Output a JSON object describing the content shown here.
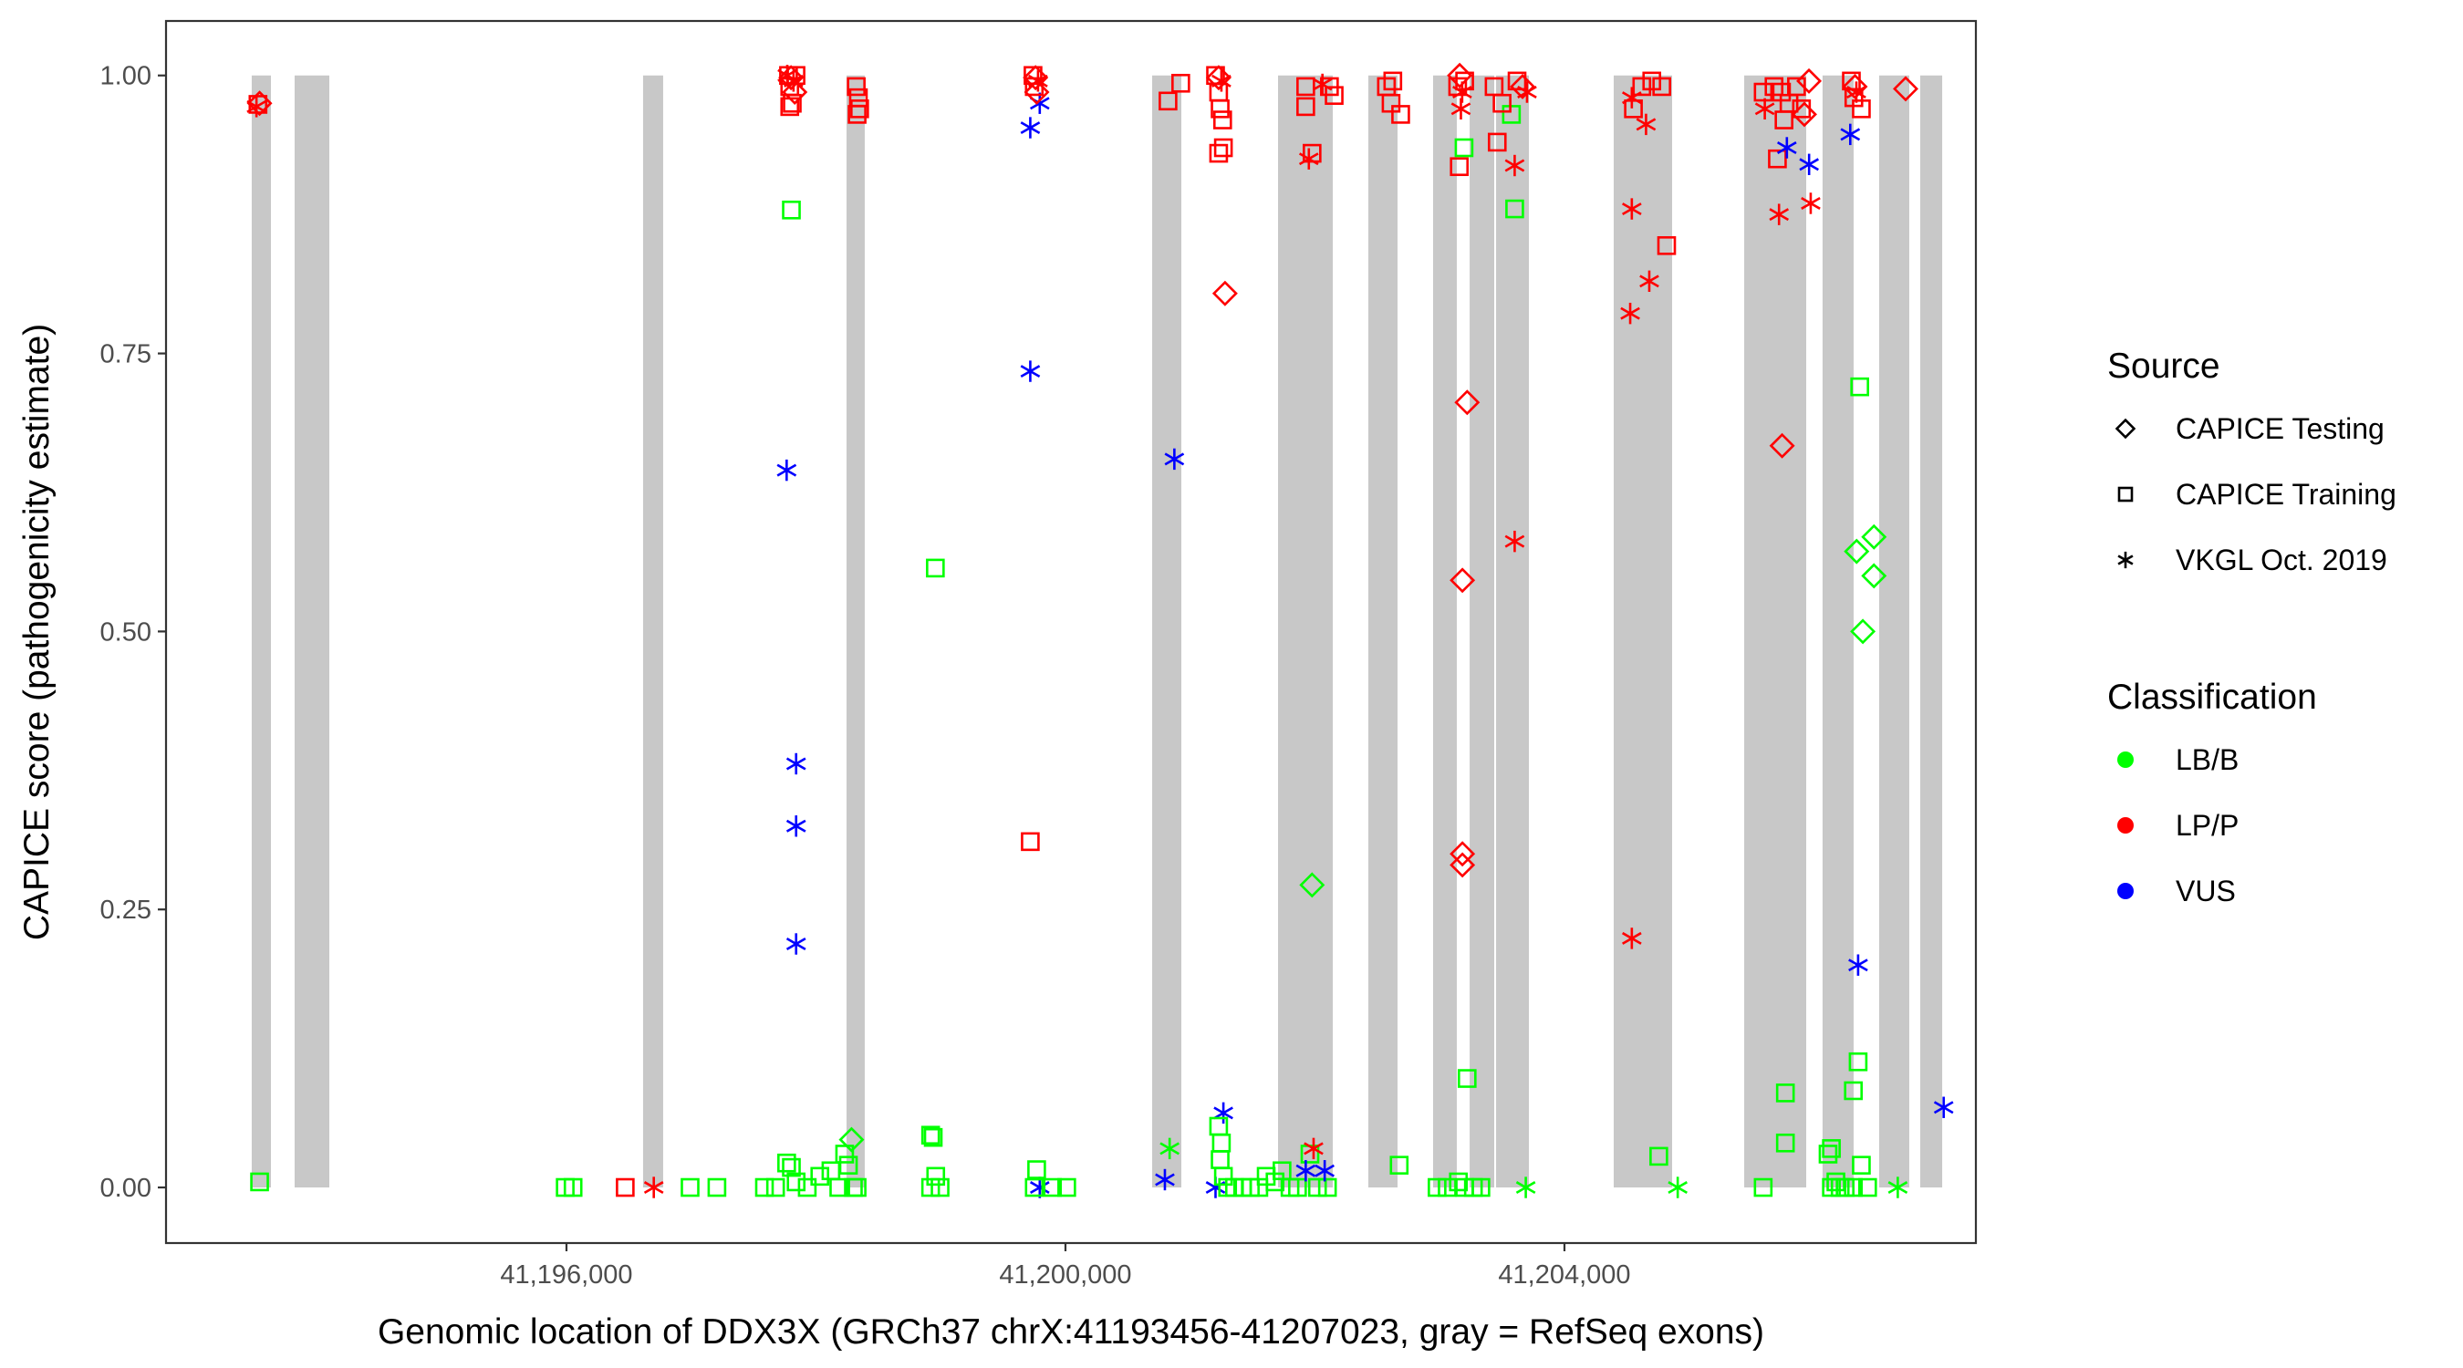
{
  "chart_data": {
    "type": "scatter",
    "title": "",
    "xlabel": "Genomic location of DDX3X (GRCh37 chrX:41193456-41207023, gray = RefSeq exons)",
    "ylabel": "CAPICE score (pathogenicity estimate)",
    "xlim": [
      41192790,
      41207298
    ],
    "ylim": [
      -0.05,
      1.049
    ],
    "grid": false,
    "x_ticks": [
      {
        "value": 41196000,
        "label": "41,196,000"
      },
      {
        "value": 41200000,
        "label": "41,200,000"
      },
      {
        "value": 41204000,
        "label": "41,204,000"
      }
    ],
    "y_ticks": [
      {
        "value": 0.0,
        "label": "0.00"
      },
      {
        "value": 0.25,
        "label": "0.25"
      },
      {
        "value": 0.5,
        "label": "0.50"
      },
      {
        "value": 0.75,
        "label": "0.75"
      },
      {
        "value": 1.0,
        "label": "1.00"
      }
    ],
    "exon_color": "#c8c8c8",
    "exons": [
      [
        41193477,
        41193631
      ],
      [
        41193821,
        41194099
      ],
      [
        41196614,
        41196775
      ],
      [
        41198245,
        41198391
      ],
      [
        41200695,
        41200929
      ],
      [
        41201704,
        41202143
      ],
      [
        41202428,
        41202662
      ],
      [
        41202947,
        41203137
      ],
      [
        41203240,
        41203437
      ],
      [
        41203452,
        41203715
      ],
      [
        41204395,
        41204863
      ],
      [
        41205441,
        41205938
      ],
      [
        41206069,
        41206318
      ],
      [
        41206523,
        41206764
      ],
      [
        41206852,
        41207028
      ]
    ],
    "legend": {
      "placement": "right",
      "source": {
        "title": "Source",
        "items": [
          {
            "key": "T",
            "label": "CAPICE Testing",
            "shape": "diamond"
          },
          {
            "key": "R",
            "label": "CAPICE Training",
            "shape": "square"
          },
          {
            "key": "V",
            "label": "VKGL Oct. 2019",
            "shape": "asterisk"
          }
        ]
      },
      "classification": {
        "title": "Classification",
        "items": [
          {
            "key": "B",
            "label": "LB/B",
            "color": "#00ff00"
          },
          {
            "key": "P",
            "label": "LP/P",
            "color": "#ff0000"
          },
          {
            "key": "U",
            "label": "VUS",
            "color": "#0000ff"
          }
        ]
      }
    },
    "points": [
      [
        41193527,
        0.974,
        "R",
        "P"
      ],
      [
        41193515,
        0.972,
        "V",
        "P"
      ],
      [
        41193540,
        0.975,
        "T",
        "P"
      ],
      [
        41193540,
        0.005,
        "R",
        "B"
      ],
      [
        41195990,
        0.0,
        "R",
        "B"
      ],
      [
        41196053,
        0.0,
        "R",
        "B"
      ],
      [
        41196471,
        0.0,
        "R",
        "P"
      ],
      [
        41196700,
        0.0,
        "V",
        "P"
      ],
      [
        41196991,
        0.0,
        "R",
        "B"
      ],
      [
        41197206,
        0.0,
        "R",
        "B"
      ],
      [
        41197765,
        0.645,
        "V",
        "U"
      ],
      [
        41197841,
        0.381,
        "V",
        "U"
      ],
      [
        41197841,
        0.325,
        "V",
        "U"
      ],
      [
        41197841,
        0.219,
        "V",
        "U"
      ],
      [
        41197803,
        0.879,
        "R",
        "B"
      ],
      [
        41197780,
        1.0,
        "R",
        "P"
      ],
      [
        41197800,
        0.998,
        "T",
        "P"
      ],
      [
        41197820,
        0.995,
        "V",
        "P"
      ],
      [
        41197790,
        0.99,
        "R",
        "P"
      ],
      [
        41197830,
        0.985,
        "T",
        "P"
      ],
      [
        41197810,
        0.975,
        "R",
        "P"
      ],
      [
        41197790,
        0.972,
        "R",
        "P"
      ],
      [
        41197770,
        1.0,
        "V",
        "P"
      ],
      [
        41197840,
        1.0,
        "R",
        "P"
      ],
      [
        41197587,
        0.0,
        "R",
        "B"
      ],
      [
        41197676,
        0.0,
        "R",
        "B"
      ],
      [
        41197765,
        0.022,
        "R",
        "B"
      ],
      [
        41197803,
        0.018,
        "R",
        "B"
      ],
      [
        41197841,
        0.005,
        "R",
        "B"
      ],
      [
        41197930,
        0.0,
        "R",
        "B"
      ],
      [
        41198031,
        0.01,
        "R",
        "B"
      ],
      [
        41198120,
        0.015,
        "R",
        "B"
      ],
      [
        41198183,
        0.0,
        "R",
        "B"
      ],
      [
        41198230,
        0.03,
        "R",
        "B"
      ],
      [
        41198260,
        0.02,
        "R",
        "B"
      ],
      [
        41198285,
        0.043,
        "T",
        "B"
      ],
      [
        41198300,
        0.0,
        "R",
        "B"
      ],
      [
        41198330,
        0.0,
        "R",
        "B"
      ],
      [
        41198323,
        0.99,
        "R",
        "P"
      ],
      [
        41198340,
        0.98,
        "R",
        "P"
      ],
      [
        41198350,
        0.97,
        "R",
        "P"
      ],
      [
        41198330,
        0.965,
        "R",
        "P"
      ],
      [
        41198957,
        0.557,
        "R",
        "B"
      ],
      [
        41198919,
        0.047,
        "R",
        "B"
      ],
      [
        41198940,
        0.045,
        "R",
        "B"
      ],
      [
        41198919,
        0.0,
        "R",
        "B"
      ],
      [
        41198960,
        0.01,
        "R",
        "B"
      ],
      [
        41198995,
        0.0,
        "R",
        "B"
      ],
      [
        41199718,
        0.311,
        "R",
        "P"
      ],
      [
        41199718,
        0.734,
        "V",
        "U"
      ],
      [
        41199718,
        0.953,
        "V",
        "U"
      ],
      [
        41199794,
        0.975,
        "V",
        "U"
      ],
      [
        41199740,
        1.0,
        "R",
        "P"
      ],
      [
        41199760,
        0.998,
        "T",
        "P"
      ],
      [
        41199780,
        0.995,
        "V",
        "P"
      ],
      [
        41199750,
        0.99,
        "R",
        "P"
      ],
      [
        41199770,
        0.985,
        "T",
        "P"
      ],
      [
        41199794,
        0.0,
        "V",
        "U"
      ],
      [
        41199769,
        0.016,
        "R",
        "B"
      ],
      [
        41199750,
        0.0,
        "R",
        "B"
      ],
      [
        41199896,
        0.0,
        "R",
        "B"
      ],
      [
        41200010,
        0.0,
        "R",
        "B"
      ],
      [
        41200822,
        0.977,
        "R",
        "P"
      ],
      [
        41200924,
        0.993,
        "R",
        "P"
      ],
      [
        41200873,
        0.655,
        "V",
        "U"
      ],
      [
        41200835,
        0.035,
        "V",
        "B"
      ],
      [
        41200797,
        0.007,
        "V",
        "U"
      ],
      [
        41201203,
        1.0,
        "R",
        "P"
      ],
      [
        41201228,
        0.998,
        "T",
        "P"
      ],
      [
        41201250,
        0.995,
        "V",
        "P"
      ],
      [
        41201228,
        0.985,
        "R",
        "P"
      ],
      [
        41201240,
        0.97,
        "R",
        "P"
      ],
      [
        41201260,
        0.96,
        "R",
        "P"
      ],
      [
        41201228,
        0.93,
        "R",
        "P"
      ],
      [
        41201266,
        0.935,
        "R",
        "P"
      ],
      [
        41201279,
        0.804,
        "T",
        "P"
      ],
      [
        41201266,
        0.067,
        "V",
        "U"
      ],
      [
        41201203,
        0.0,
        "V",
        "U"
      ],
      [
        41201228,
        0.055,
        "R",
        "B"
      ],
      [
        41201250,
        0.04,
        "R",
        "B"
      ],
      [
        41201240,
        0.025,
        "R",
        "B"
      ],
      [
        41201266,
        0.01,
        "R",
        "B"
      ],
      [
        41201355,
        0.0,
        "R",
        "B"
      ],
      [
        41201482,
        0.0,
        "R",
        "B"
      ],
      [
        41201609,
        0.01,
        "R",
        "B"
      ],
      [
        41201736,
        0.015,
        "R",
        "B"
      ],
      [
        41201300,
        0.0,
        "R",
        "B"
      ],
      [
        41201420,
        0.0,
        "R",
        "B"
      ],
      [
        41201550,
        0.0,
        "R",
        "B"
      ],
      [
        41201680,
        0.005,
        "R",
        "B"
      ],
      [
        41201800,
        0.0,
        "R",
        "B"
      ],
      [
        41201860,
        0.0,
        "R",
        "B"
      ],
      [
        41201960,
        0.03,
        "R",
        "B"
      ],
      [
        41202020,
        0.0,
        "R",
        "B"
      ],
      [
        41202100,
        0.0,
        "R",
        "B"
      ],
      [
        41201926,
        0.99,
        "R",
        "P"
      ],
      [
        41201951,
        0.925,
        "V",
        "P"
      ],
      [
        41201977,
        0.93,
        "R",
        "P"
      ],
      [
        41201926,
        0.972,
        "R",
        "P"
      ],
      [
        41201989,
        0.035,
        "V",
        "P"
      ],
      [
        41201977,
        0.272,
        "T",
        "B"
      ],
      [
        41201926,
        0.015,
        "V",
        "U"
      ],
      [
        41202078,
        0.015,
        "V",
        "U"
      ],
      [
        41202116,
        0.99,
        "R",
        "P"
      ],
      [
        41202154,
        0.982,
        "R",
        "P"
      ],
      [
        41202060,
        0.992,
        "V",
        "P"
      ],
      [
        41202573,
        0.99,
        "R",
        "P"
      ],
      [
        41202624,
        0.995,
        "R",
        "P"
      ],
      [
        41202610,
        0.975,
        "R",
        "P"
      ],
      [
        41202687,
        0.965,
        "R",
        "P"
      ],
      [
        41202675,
        0.02,
        "R",
        "B"
      ],
      [
        41202979,
        0.0,
        "R",
        "B"
      ],
      [
        41203060,
        0.0,
        "R",
        "B"
      ],
      [
        41203157,
        0.918,
        "R",
        "P"
      ],
      [
        41203182,
        0.29,
        "T",
        "P"
      ],
      [
        41203182,
        0.3,
        "T",
        "P"
      ],
      [
        41203182,
        0.546,
        "T",
        "P"
      ],
      [
        41203220,
        0.706,
        "T",
        "P"
      ],
      [
        41203195,
        0.935,
        "R",
        "B"
      ],
      [
        41203220,
        0.098,
        "R",
        "B"
      ],
      [
        41203144,
        0.99,
        "R",
        "P"
      ],
      [
        41203160,
        1.0,
        "T",
        "P"
      ],
      [
        41203180,
        0.985,
        "V",
        "P"
      ],
      [
        41203200,
        0.995,
        "R",
        "P"
      ],
      [
        41203170,
        0.97,
        "V",
        "P"
      ],
      [
        41203150,
        0.005,
        "R",
        "B"
      ],
      [
        41203200,
        0.0,
        "R",
        "B"
      ],
      [
        41203270,
        0.0,
        "R",
        "B"
      ],
      [
        41203330,
        0.0,
        "R",
        "B"
      ],
      [
        41203461,
        0.94,
        "R",
        "P"
      ],
      [
        41203575,
        0.965,
        "R",
        "B"
      ],
      [
        41203601,
        0.88,
        "R",
        "B"
      ],
      [
        41203601,
        0.919,
        "V",
        "P"
      ],
      [
        41203601,
        0.581,
        "V",
        "P"
      ],
      [
        41203690,
        0.0,
        "V",
        "B"
      ],
      [
        41203436,
        0.99,
        "R",
        "P"
      ],
      [
        41203664,
        0.99,
        "T",
        "P"
      ],
      [
        41203620,
        0.995,
        "R",
        "P"
      ],
      [
        41203500,
        0.975,
        "R",
        "P"
      ],
      [
        41203700,
        0.985,
        "V",
        "P"
      ],
      [
        41204527,
        0.786,
        "V",
        "P"
      ],
      [
        41204540,
        0.88,
        "V",
        "P"
      ],
      [
        41204540,
        0.224,
        "V",
        "P"
      ],
      [
        41204654,
        0.956,
        "V",
        "P"
      ],
      [
        41204680,
        0.815,
        "V",
        "P"
      ],
      [
        41204819,
        0.847,
        "R",
        "P"
      ],
      [
        41204553,
        0.97,
        "R",
        "P"
      ],
      [
        41204540,
        0.98,
        "V",
        "P"
      ],
      [
        41204620,
        0.99,
        "R",
        "P"
      ],
      [
        41204700,
        0.995,
        "R",
        "P"
      ],
      [
        41204780,
        0.99,
        "R",
        "P"
      ],
      [
        41204756,
        0.028,
        "R",
        "B"
      ],
      [
        41204908,
        0.0,
        "V",
        "B"
      ],
      [
        41205593,
        0.0,
        "R",
        "B"
      ],
      [
        41205606,
        0.97,
        "V",
        "P"
      ],
      [
        41205593,
        0.985,
        "R",
        "P"
      ],
      [
        41205707,
        0.925,
        "R",
        "P"
      ],
      [
        41205720,
        0.875,
        "V",
        "P"
      ],
      [
        41205745,
        0.667,
        "T",
        "P"
      ],
      [
        41205771,
        0.085,
        "R",
        "B"
      ],
      [
        41205771,
        0.04,
        "R",
        "B"
      ],
      [
        41205783,
        0.935,
        "V",
        "U"
      ],
      [
        41205961,
        0.92,
        "V",
        "U"
      ],
      [
        41205974,
        0.885,
        "V",
        "P"
      ],
      [
        41205923,
        0.965,
        "T",
        "P"
      ],
      [
        41205680,
        0.99,
        "R",
        "P"
      ],
      [
        41205740,
        0.985,
        "R",
        "P"
      ],
      [
        41205760,
        0.96,
        "R",
        "P"
      ],
      [
        41205800,
        0.975,
        "R",
        "P"
      ],
      [
        41205860,
        0.99,
        "R",
        "P"
      ],
      [
        41205900,
        0.97,
        "R",
        "P"
      ],
      [
        41205960,
        0.995,
        "T",
        "P"
      ],
      [
        41206113,
        0.03,
        "R",
        "B"
      ],
      [
        41206140,
        0.035,
        "R",
        "B"
      ],
      [
        41206291,
        0.947,
        "V",
        "U"
      ],
      [
        41206329,
        0.99,
        "T",
        "P"
      ],
      [
        41206380,
        0.97,
        "R",
        "P"
      ],
      [
        41206300,
        0.995,
        "R",
        "P"
      ],
      [
        41206320,
        0.98,
        "R",
        "P"
      ],
      [
        41206340,
        0.985,
        "V",
        "P"
      ],
      [
        41206735,
        0.988,
        "T",
        "P"
      ],
      [
        41206354,
        0.2,
        "V",
        "U"
      ],
      [
        41206367,
        0.72,
        "R",
        "B"
      ],
      [
        41206354,
        0.113,
        "R",
        "B"
      ],
      [
        41206316,
        0.087,
        "R",
        "B"
      ],
      [
        41206342,
        0.572,
        "T",
        "B"
      ],
      [
        41206481,
        0.585,
        "T",
        "B"
      ],
      [
        41206481,
        0.55,
        "T",
        "B"
      ],
      [
        41206392,
        0.5,
        "T",
        "B"
      ],
      [
        41206140,
        0.0,
        "R",
        "B"
      ],
      [
        41206176,
        0.005,
        "R",
        "B"
      ],
      [
        41206210,
        0.0,
        "R",
        "B"
      ],
      [
        41206250,
        0.0,
        "R",
        "B"
      ],
      [
        41206316,
        0.0,
        "R",
        "B"
      ],
      [
        41206380,
        0.02,
        "R",
        "B"
      ],
      [
        41206430,
        0.0,
        "R",
        "B"
      ],
      [
        41206672,
        0.0,
        "V",
        "B"
      ],
      [
        41207040,
        0.072,
        "V",
        "U"
      ]
    ]
  }
}
